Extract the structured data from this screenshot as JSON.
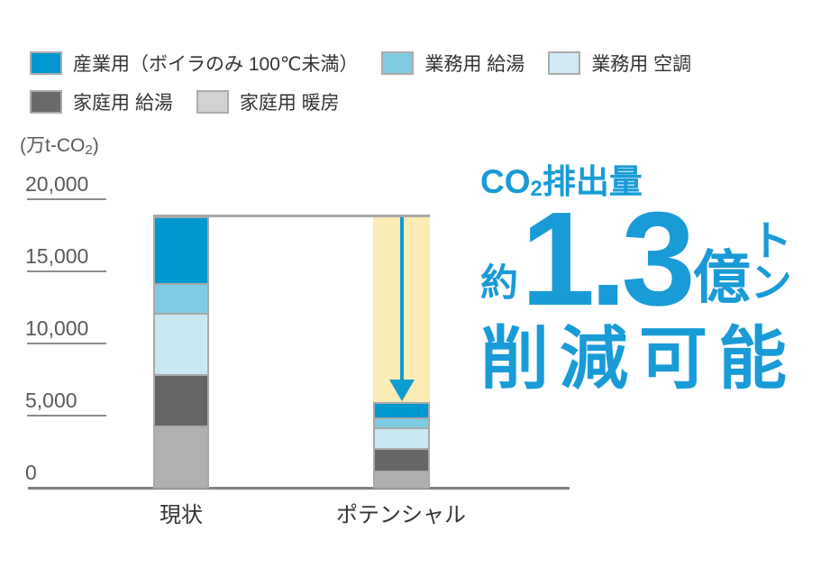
{
  "legend": {
    "items": [
      {
        "label": "産業用（ボイラのみ 100℃未満）",
        "color": "#0098CE"
      },
      {
        "label": "業務用 給湯",
        "color": "#7FCBE3"
      },
      {
        "label": "業務用 空調",
        "color": "#CFEAF5"
      },
      {
        "label": "家庭用 給湯",
        "color": "#6A6A6A"
      },
      {
        "label": "家庭用 暖房",
        "color": "#D2D2D2"
      }
    ]
  },
  "axis": {
    "unit_prefix": "(万t-CO",
    "unit_sub": "2",
    "unit_suffix": ")",
    "yticks": [
      {
        "value": 20000,
        "label": "20,000"
      },
      {
        "value": 15000,
        "label": "15,000"
      },
      {
        "value": 10000,
        "label": "10,000"
      },
      {
        "value": 5000,
        "label": "5,000"
      },
      {
        "value": 0,
        "label": "0"
      }
    ]
  },
  "chart_data": {
    "type": "bar",
    "stacked": true,
    "unit": "万t-CO2",
    "categories": [
      "現状",
      "ポテンシャル"
    ],
    "series": [
      {
        "name": "産業用（ボイラのみ 100℃未満）",
        "color": "#0098CE",
        "values": [
          4750,
          1200
        ]
      },
      {
        "name": "業務用 給湯",
        "color": "#7FCBE3",
        "values": [
          2100,
          700
        ]
      },
      {
        "name": "業務用 空調",
        "color": "#CAE8F4",
        "values": [
          4250,
          1400
        ]
      },
      {
        "name": "家庭用 給湯",
        "color": "#666666",
        "values": [
          3550,
          1550
        ]
      },
      {
        "name": "家庭用 暖房",
        "color": "#B0B0B0",
        "values": [
          4250,
          1150
        ]
      }
    ],
    "totals": {
      "現状": 18900,
      "ポテンシャル": 6000
    },
    "ylim": [
      0,
      20000
    ],
    "grid": "short tick underlines at left of labels only, no vertical axis line",
    "legend_position": "top-left",
    "annotations": {
      "highlight_band_color": "#FBEBB4",
      "arrow_color": "#0E9CD0",
      "reduction_value": 13000,
      "meaning": "現状とポテンシャルの差＝約1.3億トンのCO2削減余地"
    }
  },
  "callout": {
    "heading_co": "CO",
    "heading_sub": "2",
    "heading_rest": "排出量",
    "approx": "約",
    "big_number": "1.3",
    "unit_oku": "億",
    "unit_ton": "トン",
    "line3": "削減可能",
    "color": "#189BD7"
  }
}
